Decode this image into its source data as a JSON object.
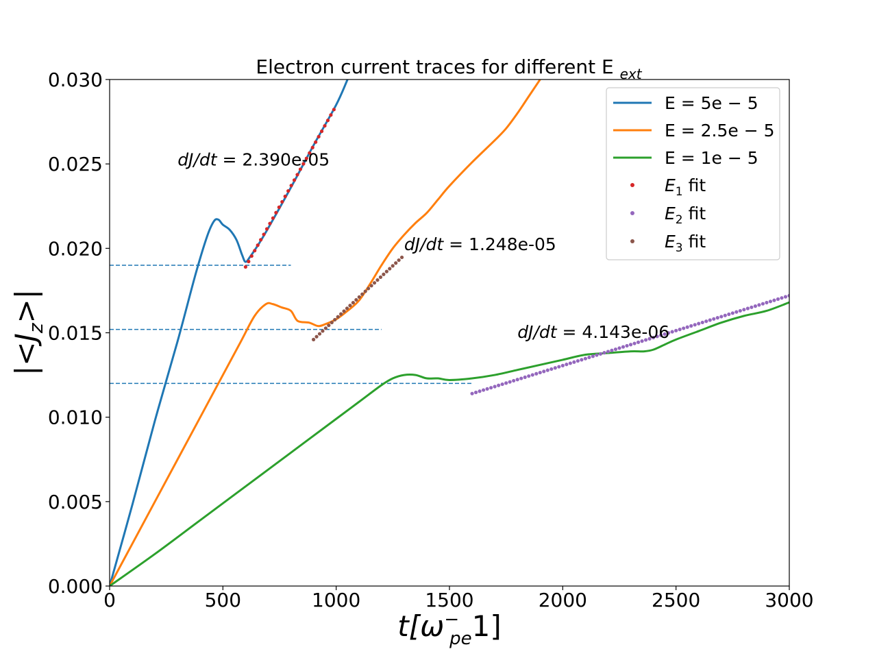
{
  "chart_data": {
    "type": "line",
    "title": "Electron current traces for different E",
    "title_sub": "ext",
    "xlabel": {
      "pre": "t[ω",
      "sup": "−",
      "sub": "pe",
      "post": "1]"
    },
    "ylabel": "|<J",
    "ylabel_sub": "z",
    "ylabel_post": ">|",
    "xlim": [
      0,
      3000
    ],
    "ylim": [
      0,
      0.03
    ],
    "xticks": [
      0,
      500,
      1000,
      1500,
      2000,
      2500,
      3000
    ],
    "xtick_labels": [
      "0",
      "500",
      "1000",
      "1500",
      "2000",
      "2500",
      "3000"
    ],
    "yticks": [
      0,
      0.005,
      0.01,
      0.015,
      0.02,
      0.025,
      0.03
    ],
    "ytick_labels": [
      "0.000",
      "0.005",
      "0.010",
      "0.015",
      "0.020",
      "0.025",
      "0.030"
    ],
    "grid": false,
    "legend_position": "top-right",
    "series": [
      {
        "name": "E = 5e − 5",
        "color": "#1f77b4",
        "points": [
          [
            0,
            0
          ],
          [
            100,
            0.0048
          ],
          [
            200,
            0.0098
          ],
          [
            300,
            0.0145
          ],
          [
            380,
            0.0185
          ],
          [
            430,
            0.0207
          ],
          [
            460,
            0.0216
          ],
          [
            480,
            0.0217
          ],
          [
            500,
            0.0214
          ],
          [
            530,
            0.0211
          ],
          [
            560,
            0.0205
          ],
          [
            585,
            0.0196
          ],
          [
            600,
            0.0192
          ],
          [
            620,
            0.0195
          ],
          [
            660,
            0.0203
          ],
          [
            700,
            0.0212
          ],
          [
            800,
            0.0236
          ],
          [
            900,
            0.0261
          ],
          [
            1000,
            0.0285
          ],
          [
            1050,
            0.03
          ]
        ]
      },
      {
        "name": "E = 2.5e − 5",
        "color": "#ff7f0e",
        "points": [
          [
            0,
            0
          ],
          [
            100,
            0.0025
          ],
          [
            200,
            0.005
          ],
          [
            300,
            0.0075
          ],
          [
            400,
            0.01
          ],
          [
            500,
            0.0125
          ],
          [
            580,
            0.0145
          ],
          [
            640,
            0.016
          ],
          [
            690,
            0.0167
          ],
          [
            720,
            0.0167
          ],
          [
            760,
            0.0165
          ],
          [
            800,
            0.0163
          ],
          [
            830,
            0.0157
          ],
          [
            880,
            0.0156
          ],
          [
            920,
            0.0154
          ],
          [
            950,
            0.0155
          ],
          [
            1000,
            0.0158
          ],
          [
            1050,
            0.0163
          ],
          [
            1100,
            0.0169
          ],
          [
            1150,
            0.0179
          ],
          [
            1200,
            0.019
          ],
          [
            1250,
            0.02
          ],
          [
            1300,
            0.0208
          ],
          [
            1350,
            0.0215
          ],
          [
            1400,
            0.0221
          ],
          [
            1450,
            0.0229
          ],
          [
            1500,
            0.0237
          ],
          [
            1600,
            0.0251
          ],
          [
            1700,
            0.0264
          ],
          [
            1750,
            0.0271
          ],
          [
            1800,
            0.028
          ],
          [
            1850,
            0.029
          ],
          [
            1900,
            0.03
          ]
        ]
      },
      {
        "name": "E = 1e − 5",
        "color": "#2ca02c",
        "points": [
          [
            0,
            0
          ],
          [
            200,
            0.0019
          ],
          [
            400,
            0.0039
          ],
          [
            600,
            0.0059
          ],
          [
            800,
            0.0079
          ],
          [
            1000,
            0.0099
          ],
          [
            1100,
            0.0109
          ],
          [
            1200,
            0.0119
          ],
          [
            1250,
            0.0123
          ],
          [
            1300,
            0.0125
          ],
          [
            1350,
            0.0125
          ],
          [
            1400,
            0.0123
          ],
          [
            1450,
            0.0123
          ],
          [
            1500,
            0.0122
          ],
          [
            1600,
            0.0123
          ],
          [
            1700,
            0.0125
          ],
          [
            1800,
            0.0128
          ],
          [
            1900,
            0.0131
          ],
          [
            2000,
            0.0134
          ],
          [
            2100,
            0.0137
          ],
          [
            2200,
            0.0138
          ],
          [
            2300,
            0.0139
          ],
          [
            2360,
            0.0139
          ],
          [
            2400,
            0.014
          ],
          [
            2450,
            0.0143
          ],
          [
            2500,
            0.0146
          ],
          [
            2600,
            0.0151
          ],
          [
            2700,
            0.0156
          ],
          [
            2800,
            0.016
          ],
          [
            2900,
            0.0163
          ],
          [
            3000,
            0.0168
          ]
        ]
      }
    ],
    "fits": [
      {
        "name": "E",
        "sub": "1",
        "suffix": " fit",
        "color": "#d62728",
        "x_start": 600,
        "x_end": 990,
        "y_start": 0.0189,
        "slope": 2.39e-05,
        "count": 30
      },
      {
        "name": "E",
        "sub": "2",
        "suffix": " fit",
        "color": "#9467bd",
        "x_start": 1600,
        "x_end": 3000,
        "y_start": 0.0114,
        "slope": 4.143e-06,
        "count": 85
      },
      {
        "name": "E",
        "sub": "3",
        "suffix": " fit",
        "color": "#8c564b",
        "x_start": 900,
        "x_end": 1290,
        "y_start": 0.0146,
        "slope": 1.248e-05,
        "count": 30
      }
    ],
    "hlines": [
      {
        "y": 0.019,
        "x_end": 800,
        "color": "#1f77b4"
      },
      {
        "y": 0.0152,
        "x_end": 1200,
        "color": "#1f77b4"
      },
      {
        "y": 0.012,
        "x_end": 1600,
        "color": "#1f77b4"
      }
    ],
    "annotations": [
      {
        "pre": "dJ/dt",
        "text": " = 2.390e-05",
        "x": 300,
        "y": 0.0249
      },
      {
        "pre": "dJ/dt",
        "text": " = 1.248e-05",
        "x": 1300,
        "y": 0.0199
      },
      {
        "pre": "dJ/dt",
        "text": " = 4.143e-06",
        "x": 1800,
        "y": 0.0147
      }
    ]
  }
}
